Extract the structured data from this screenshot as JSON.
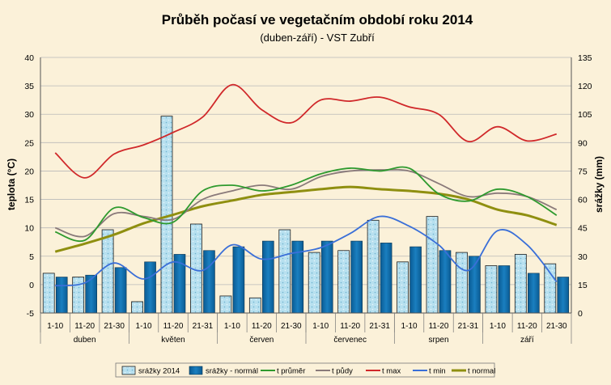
{
  "chart_data": {
    "type": "bar+line",
    "title": "Průběh počasí ve vegetačním období roku 2014",
    "subtitle": "(duben-září)  - VST Zubří",
    "ylabel_left": "teplota (°C)",
    "ylabel_right": "srážky (mm)",
    "ylim_left": [
      -5,
      40
    ],
    "ylim_right": [
      0,
      135
    ],
    "yticks_left": [
      "40",
      "35",
      "30",
      "25",
      "20",
      "15",
      "10",
      "5",
      "0",
      "-5"
    ],
    "yticks_right": [
      "135",
      "120",
      "105",
      "90",
      "75",
      "60",
      "45",
      "30",
      "15",
      "0"
    ],
    "categories": [
      "1-10",
      "11-20",
      "21-30",
      "1-10",
      "11-20",
      "21-31",
      "1-10",
      "11-20",
      "21-30",
      "1-10",
      "11-20",
      "21-31",
      "1-10",
      "11-20",
      "21-31",
      "1-10",
      "11-20",
      "21-30"
    ],
    "months": [
      "duben",
      "květen",
      "červen",
      "červenec",
      "srpen",
      "září"
    ],
    "bar_series": [
      {
        "name": "srážky 2014",
        "values": [
          21,
          19,
          44,
          6,
          104,
          47,
          9,
          8,
          44,
          32,
          33,
          49,
          27,
          51,
          32,
          25,
          31,
          26
        ]
      },
      {
        "name": "srážky - normál",
        "values": [
          19,
          20,
          24,
          27,
          31,
          33,
          35,
          38,
          38,
          38,
          38,
          37,
          35,
          33,
          30,
          25,
          21,
          19
        ]
      }
    ],
    "line_series": [
      {
        "name": "t průměr",
        "color": "#2e9a2e",
        "values": [
          9.3,
          7.8,
          13.5,
          11.8,
          11.0,
          16.5,
          17.5,
          16.5,
          17.5,
          19.5,
          20.5,
          20.0,
          20.5,
          16.0,
          14.7,
          16.8,
          15.5,
          12.2
        ]
      },
      {
        "name": "t půdy",
        "color": "#8a7a7a",
        "values": [
          10.0,
          8.5,
          12.5,
          12.0,
          11.5,
          15.0,
          16.5,
          17.5,
          16.8,
          19.0,
          20.0,
          20.2,
          20.0,
          17.8,
          15.5,
          16.1,
          15.5,
          13.2
        ]
      },
      {
        "name": "t max",
        "color": "#d0282a",
        "values": [
          23.2,
          18.8,
          23.0,
          24.6,
          26.8,
          29.5,
          35.2,
          30.8,
          28.5,
          32.5,
          32.3,
          33.0,
          31.3,
          30.0,
          25.2,
          27.8,
          25.3,
          26.5
        ]
      },
      {
        "name": "t min",
        "color": "#3a6fd8",
        "values": [
          -0.2,
          0.3,
          3.8,
          1.0,
          4.0,
          2.5,
          7.0,
          4.5,
          5.5,
          6.5,
          9.0,
          12.0,
          10.3,
          7.0,
          2.5,
          9.5,
          7.0,
          0.5
        ]
      },
      {
        "name": "t normal",
        "color": "#8f8f10",
        "values": [
          5.8,
          7.2,
          8.8,
          10.8,
          12.3,
          13.8,
          14.8,
          15.8,
          16.3,
          16.8,
          17.2,
          16.8,
          16.5,
          16.0,
          15.0,
          13.2,
          12.2,
          10.5
        ]
      }
    ]
  }
}
